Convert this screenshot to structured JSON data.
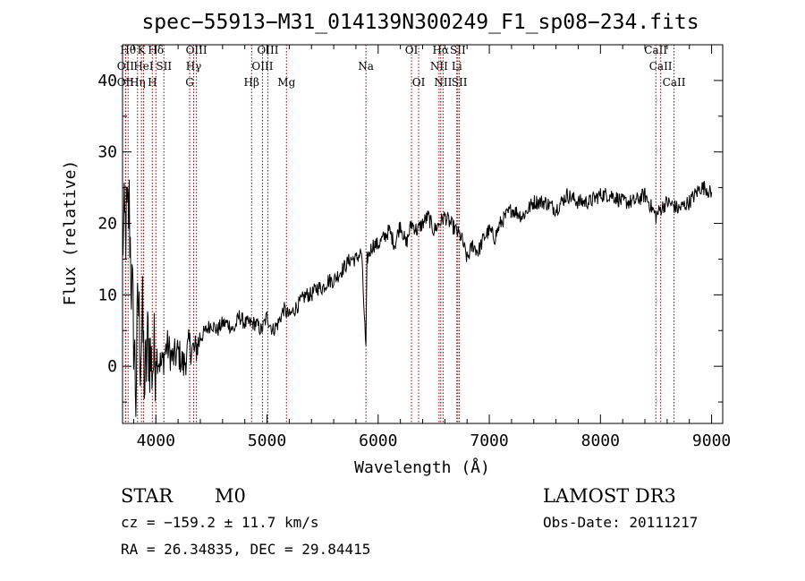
{
  "chart_data": {
    "type": "line",
    "title": "spec−55913−M31_014139N300249_F1_sp08−234.fits",
    "xlabel": "Wavelength (Å)",
    "ylabel": "Flux (relative)",
    "xlim": [
      3700,
      9100
    ],
    "ylim": [
      -8,
      45
    ],
    "x_ticks": [
      4000,
      5000,
      6000,
      7000,
      8000,
      9000
    ],
    "x_tick_labels": [
      "4000",
      "5000",
      "6000",
      "7000",
      "8000",
      "9000"
    ],
    "y_ticks": [
      0,
      10,
      20,
      30,
      40
    ],
    "y_tick_labels": [
      "0",
      "10",
      "20",
      "30",
      "40"
    ],
    "series": [
      {
        "name": "spectrum",
        "x": [
          3700,
          3740,
          3760,
          3780,
          3800,
          3820,
          3840,
          3860,
          3880,
          3900,
          3930,
          3960,
          4000,
          4050,
          4100,
          4150,
          4200,
          4250,
          4300,
          4350,
          4400,
          4450,
          4500,
          4550,
          4600,
          4650,
          4700,
          4750,
          4800,
          4850,
          4900,
          4950,
          5000,
          5050,
          5100,
          5150,
          5200,
          5250,
          5300,
          5350,
          5400,
          5450,
          5500,
          5550,
          5600,
          5650,
          5700,
          5750,
          5800,
          5850,
          5890,
          5900,
          5950,
          6000,
          6050,
          6100,
          6150,
          6200,
          6250,
          6300,
          6350,
          6400,
          6450,
          6500,
          6550,
          6600,
          6650,
          6700,
          6750,
          6800,
          6850,
          6900,
          6950,
          7000,
          7050,
          7100,
          7200,
          7300,
          7400,
          7500,
          7600,
          7700,
          7800,
          7900,
          8000,
          8100,
          8200,
          8300,
          8400,
          8500,
          8540,
          8600,
          8700,
          8800,
          8850,
          8900,
          8950,
          9000
        ],
        "y": [
          18,
          20,
          22,
          12,
          5,
          -4,
          10,
          2,
          6,
          -3,
          4,
          0,
          2,
          0,
          3,
          1,
          2,
          0,
          3,
          2,
          4,
          5,
          6,
          5,
          6,
          6,
          5,
          7,
          6,
          6,
          6,
          5,
          7,
          5,
          6,
          8,
          7,
          8,
          9,
          10,
          10,
          11,
          11,
          12,
          12,
          13,
          14,
          15,
          15,
          16,
          2,
          15,
          17,
          17,
          18,
          19,
          17,
          20,
          17,
          20,
          19,
          20,
          21,
          19,
          20,
          21,
          20,
          19,
          18,
          15,
          17,
          16,
          18,
          19,
          18,
          20,
          22,
          21,
          23,
          23,
          22,
          24,
          23,
          23,
          24,
          24,
          23,
          23,
          24,
          21,
          22,
          23,
          22,
          23,
          24,
          25,
          25,
          24
        ]
      }
    ],
    "line_markers": [
      {
        "wl": 3750,
        "label": "Hθ",
        "row": 0
      },
      {
        "wl": 3870,
        "label": "K",
        "row": 0
      },
      {
        "wl": 4000,
        "label": "Hδ",
        "row": 0
      },
      {
        "wl": 4365,
        "label": "OIII",
        "row": 0
      },
      {
        "wl": 5007,
        "label": "OIII",
        "row": 0
      },
      {
        "wl": 6300,
        "label": "OI",
        "row": 0
      },
      {
        "wl": 6563,
        "label": "Hα",
        "row": 0
      },
      {
        "wl": 6717,
        "label": "SII",
        "row": 0
      },
      {
        "wl": 8498,
        "label": "CaII",
        "row": 0
      },
      {
        "wl": 3727,
        "label": "OII",
        "row": 1
      },
      {
        "wl": 3889,
        "label": "HeI",
        "row": 1
      },
      {
        "wl": 4072,
        "label": "SII",
        "row": 1
      },
      {
        "wl": 4340,
        "label": "Hγ",
        "row": 1
      },
      {
        "wl": 4959,
        "label": "OIII",
        "row": 1
      },
      {
        "wl": 5890,
        "label": "Na",
        "row": 1
      },
      {
        "wl": 6548,
        "label": "NII",
        "row": 1
      },
      {
        "wl": 6708,
        "label": "Li",
        "row": 1
      },
      {
        "wl": 8542,
        "label": "CaII",
        "row": 1
      },
      {
        "wl": 3727,
        "label": "OII",
        "row": 2
      },
      {
        "wl": 3835,
        "label": "Hη",
        "row": 2
      },
      {
        "wl": 3968,
        "label": "H",
        "row": 2
      },
      {
        "wl": 4304,
        "label": "G",
        "row": 2
      },
      {
        "wl": 4861,
        "label": "Hβ",
        "row": 2
      },
      {
        "wl": 5175,
        "label": "Mg",
        "row": 2
      },
      {
        "wl": 6364,
        "label": "OI",
        "row": 2
      },
      {
        "wl": 6584,
        "label": "NII",
        "row": 2
      },
      {
        "wl": 6731,
        "label": "SII",
        "row": 2
      },
      {
        "wl": 8662,
        "label": "CaII",
        "row": 2
      }
    ],
    "colors": {
      "line": "#000000",
      "marker": "#8b0000",
      "axis": "#000000",
      "background": "#ffffff"
    }
  },
  "info": {
    "class_label": "STAR",
    "subclass_label": "M0",
    "survey": "LAMOST DR3",
    "cz": "cz = −159.2 ± 11.7 km/s",
    "obs_date": "Obs-Date: 20111217",
    "coords": "RA =  26.34835, DEC =  29.84415"
  }
}
